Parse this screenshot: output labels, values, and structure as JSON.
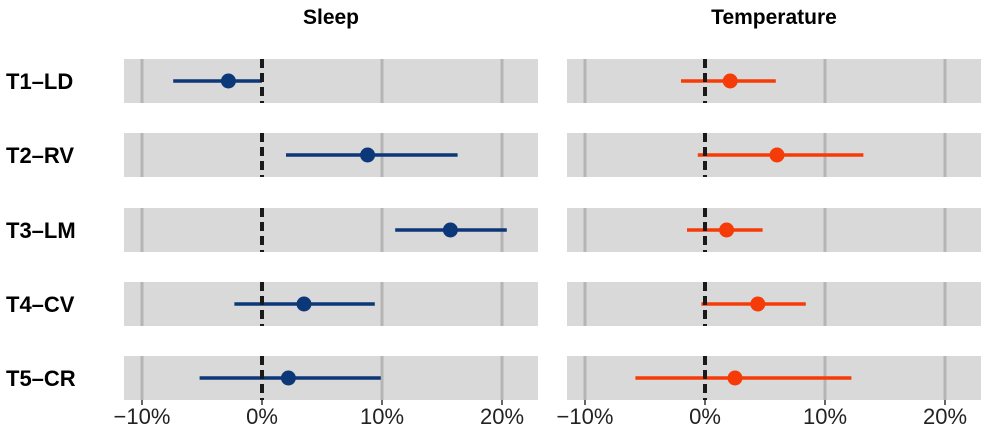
{
  "chart_data": {
    "type": "forest",
    "rows": [
      "T1–LD",
      "T2–RV",
      "T3–LM",
      "T4–CV",
      "T5–CR"
    ],
    "xlim": [
      -11.5,
      23
    ],
    "xticks": [
      -10,
      0,
      10,
      20
    ],
    "xtick_labels": [
      "−10%",
      "0%",
      "10%",
      "20%"
    ],
    "reference_line": 0,
    "panels": [
      {
        "title": "Sleep",
        "color": "#0c3778",
        "estimates": [
          -2.8,
          8.8,
          15.7,
          3.5,
          2.2
        ],
        "lower": [
          -7.4,
          2.0,
          11.1,
          -2.3,
          -5.2
        ],
        "upper": [
          0.0,
          16.3,
          20.4,
          9.4,
          9.9
        ]
      },
      {
        "title": "Temperature",
        "color": "#f53c08",
        "estimates": [
          2.1,
          6.0,
          1.8,
          4.4,
          2.5
        ],
        "lower": [
          -2.0,
          -0.6,
          -1.5,
          -0.3,
          -5.8
        ],
        "upper": [
          5.9,
          13.2,
          4.8,
          8.4,
          12.2
        ]
      }
    ]
  }
}
